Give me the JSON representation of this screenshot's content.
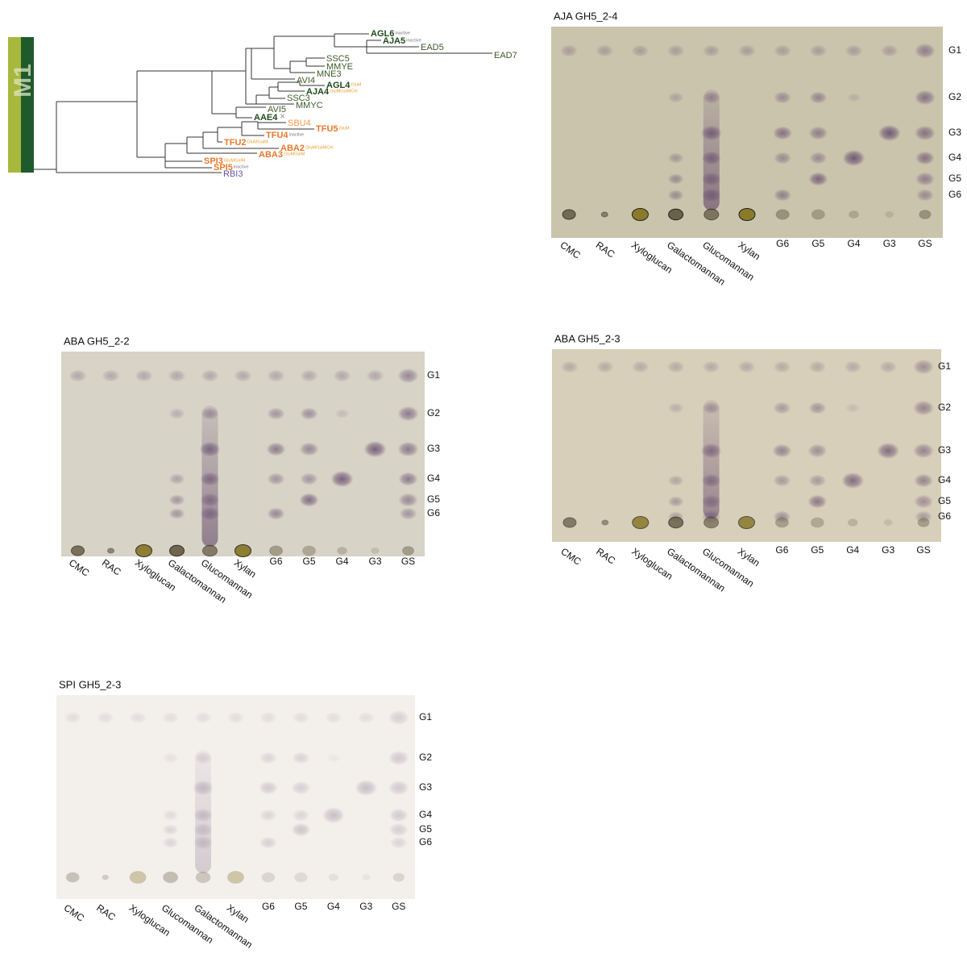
{
  "tree": {
    "clade": "M1",
    "leaves": [
      {
        "label": "AGL6",
        "note": "inactive"
      },
      {
        "label": "AJA5",
        "note": "inactive"
      },
      {
        "label": "EAD5"
      },
      {
        "label": "EAD7"
      },
      {
        "label": "SSC5"
      },
      {
        "label": "MMYE"
      },
      {
        "label": "MNE3"
      },
      {
        "label": "AVI4"
      },
      {
        "label": "AGL4",
        "note": "GluM"
      },
      {
        "label": "AJA4",
        "note": "GluMGalMCel"
      },
      {
        "label": "SSC3"
      },
      {
        "label": "MMYC"
      },
      {
        "label": "AVI5"
      },
      {
        "label": "AAE4"
      },
      {
        "label": "SBU4"
      },
      {
        "label": "TFU5",
        "note": "GluM"
      },
      {
        "label": "TFU4",
        "note": "inactive"
      },
      {
        "label": "TFU2",
        "note": "GluMGalM"
      },
      {
        "label": "ABA2",
        "note": "GluMGalMCel"
      },
      {
        "label": "ABA3",
        "note": "GluMGalM"
      },
      {
        "label": "SPI3",
        "note": "GluMGalM"
      },
      {
        "label": "SPI5",
        "note": "inactive"
      },
      {
        "label": "RBI3"
      }
    ]
  },
  "plates": [
    {
      "title": "AJA GH5_2-4",
      "lanes": [
        "CMC",
        "RAC",
        "Xyloglucan",
        "Galactomannan",
        "Glucomannan",
        "Xylan",
        "G6",
        "G5",
        "G4",
        "G3",
        "GS"
      ],
      "markers": [
        "G1",
        "G2",
        "G3",
        "G4",
        "G5",
        "G6"
      ]
    },
    {
      "title": "ABA GH5_2-2",
      "lanes": [
        "CMC",
        "RAC",
        "Xyloglucan",
        "Galactomannan",
        "Glucomannan",
        "Xylan",
        "G6",
        "G5",
        "G4",
        "G3",
        "GS"
      ],
      "markers": [
        "G1",
        "G2",
        "G3",
        "G4",
        "G5",
        "G6"
      ]
    },
    {
      "title": "ABA GH5_2-3",
      "lanes": [
        "CMC",
        "RAC",
        "Xyloglucan",
        "Galactomannan",
        "Glucomannan",
        "Xylan",
        "G6",
        "G5",
        "G4",
        "G3",
        "GS"
      ],
      "markers": [
        "G1",
        "G2",
        "G3",
        "G4",
        "G5",
        "G6"
      ]
    },
    {
      "title": "SPI GH5_2-3",
      "lanes": [
        "CMC",
        "RAC",
        "Xyloglucan",
        "Glucomannan",
        "Galactomannan",
        "Xylan",
        "G6",
        "G5",
        "G4",
        "G3",
        "GS"
      ],
      "markers": [
        "G1",
        "G2",
        "G3",
        "G4",
        "G5",
        "G6"
      ]
    }
  ]
}
